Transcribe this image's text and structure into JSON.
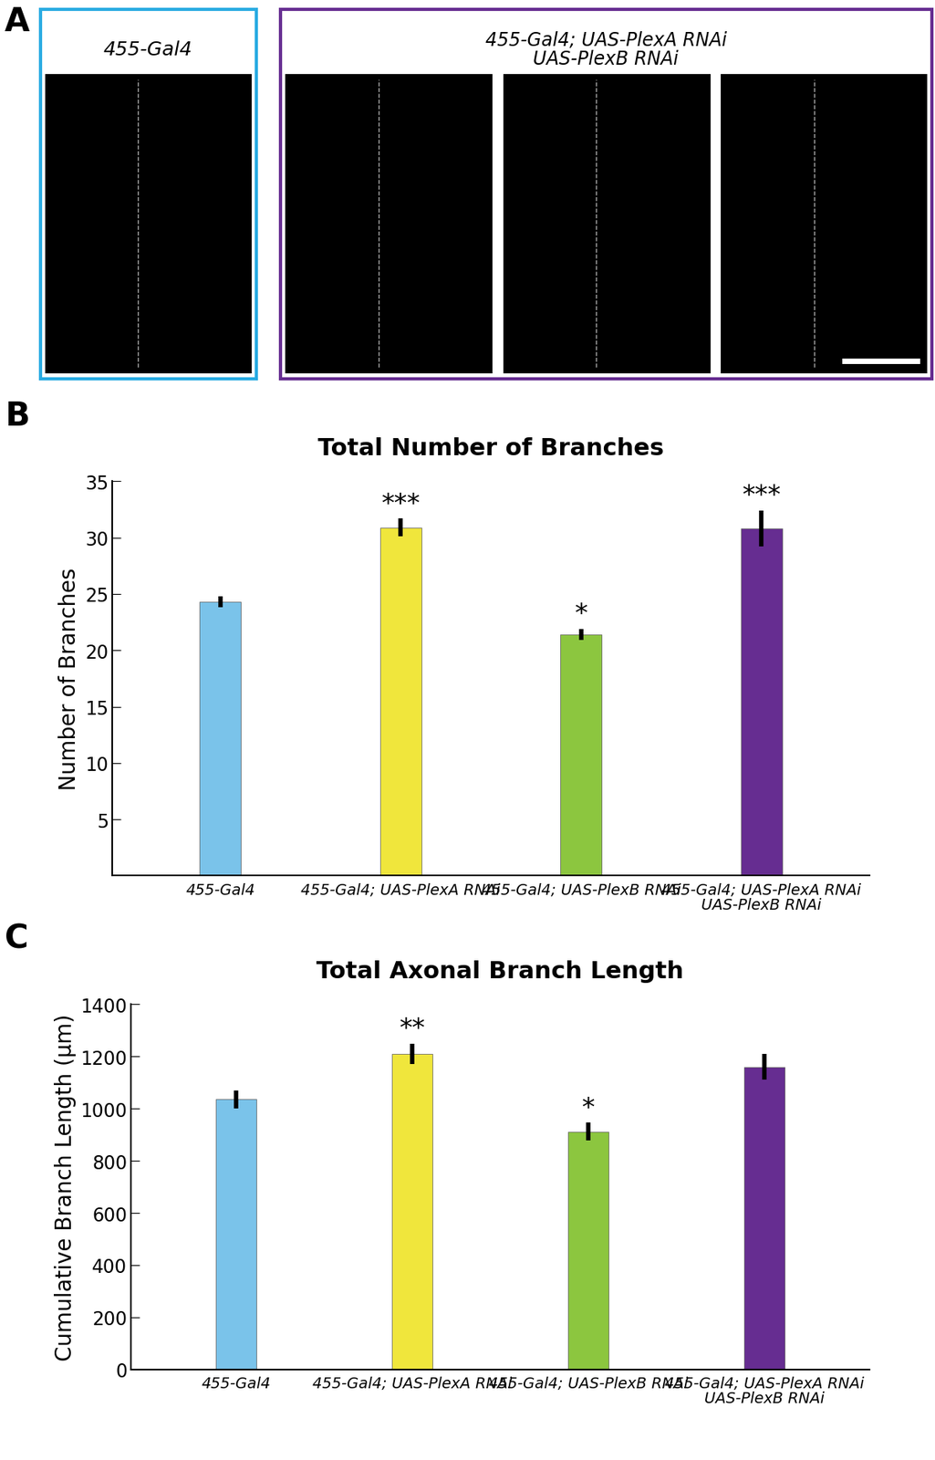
{
  "panel_a": {
    "label": "A",
    "control": "455-Gal4",
    "rnai": "455-Gal4; UAS-PlexA RNAi\nUAS-PlexB RNAi"
  },
  "chart_data": [
    {
      "label": "B",
      "type": "bar",
      "title": "Total Number of Branches",
      "y_label": "Number of Branches",
      "categories": [
        "455-Gal4",
        "455-Gal4; UAS-PlexA RNAi",
        "455-Gal4; UAS-PlexB RNAi",
        "455-Gal4; UAS-PlexA RNAi\nUAS-PlexB RNAi"
      ],
      "values": [
        24.3,
        30.9,
        21.4,
        30.8
      ],
      "errors": [
        0.5,
        0.8,
        0.5,
        1.6
      ],
      "significance": [
        null,
        "***",
        "*",
        "***"
      ],
      "colors": [
        "#7ac3ea",
        "#f0e63c",
        "#8cc63f",
        "#662d91"
      ],
      "ylim": [
        0,
        35
      ],
      "yticks": [
        5,
        10,
        15,
        20,
        25,
        30,
        35
      ]
    },
    {
      "label": "C",
      "type": "bar",
      "title": "Total Axonal Branch Length",
      "y_label": "Cumulative Branch Length (µm)",
      "categories": [
        "455-Gal4",
        "455-Gal4; UAS-PlexA RNAi",
        "455-Gal4; UAS-PlexB RNAi",
        "455-Gal4; UAS-PlexA RNAi\nUAS-PlexB RNAi"
      ],
      "values": [
        1035,
        1210,
        912,
        1160
      ],
      "errors": [
        35,
        40,
        35,
        50
      ],
      "significance": [
        null,
        "**",
        "*",
        null
      ],
      "colors": [
        "#7ac3ea",
        "#f0e63c",
        "#8cc63f",
        "#662d91"
      ],
      "ylim": [
        0,
        1400
      ],
      "yticks": [
        0,
        200,
        400,
        600,
        800,
        1000,
        1200,
        1400
      ]
    }
  ]
}
